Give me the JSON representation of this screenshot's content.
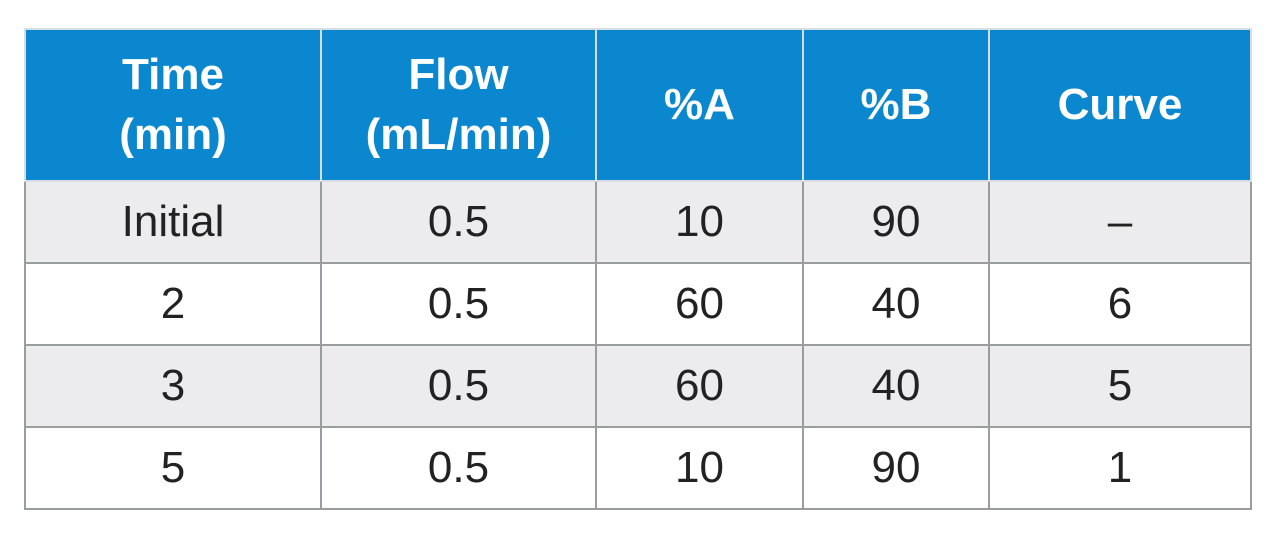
{
  "table": {
    "headers": [
      [
        "Time",
        "(min)"
      ],
      [
        "Flow",
        "(mL/min)"
      ],
      [
        "%A"
      ],
      [
        "%B"
      ],
      [
        "Curve"
      ]
    ],
    "rows": [
      [
        "Initial",
        "0.5",
        "10",
        "90",
        "–"
      ],
      [
        "2",
        "0.5",
        "60",
        "40",
        "6"
      ],
      [
        "3",
        "0.5",
        "60",
        "40",
        "5"
      ],
      [
        "5",
        "0.5",
        "10",
        "90",
        "1"
      ]
    ]
  },
  "colors": {
    "header_background": "#0a87cf",
    "header_text": "#ffffff",
    "row_shade": "#ececef",
    "grid_line": "#9a9da0"
  }
}
